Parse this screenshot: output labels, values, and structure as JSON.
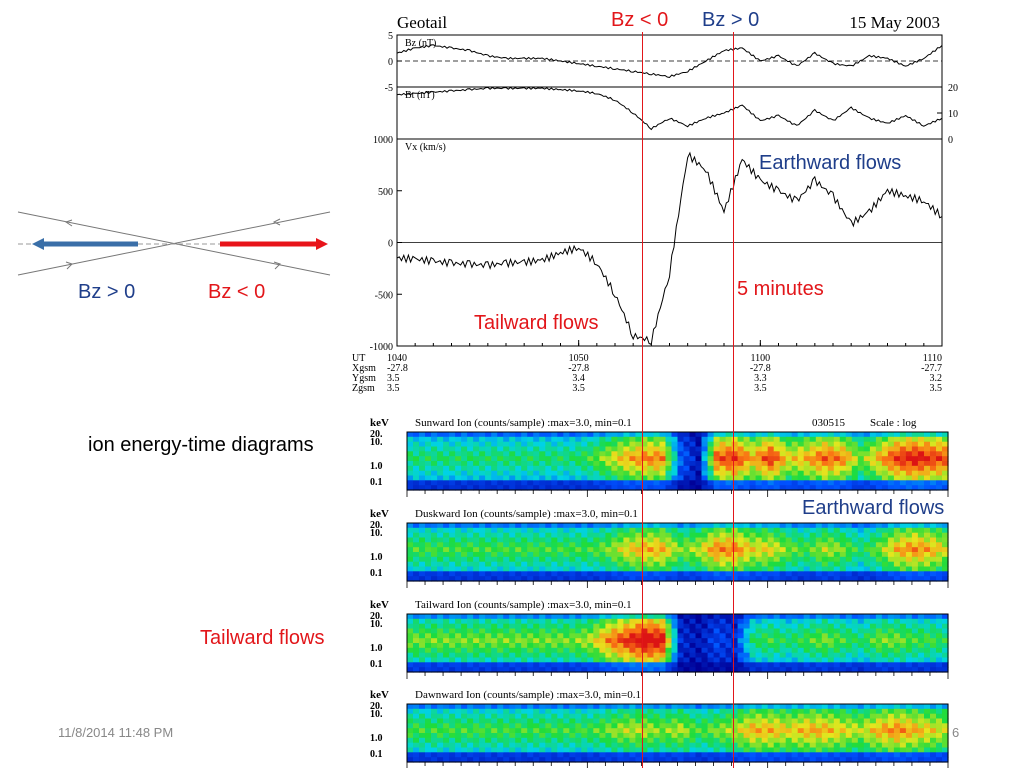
{
  "slide": {
    "footer_date": "11/8/2014 11:48 PM",
    "page_number": "6",
    "diagram_bz_pos": "Bz > 0",
    "diagram_bz_neg": "Bz < 0",
    "ion_label": "ion energy-time diagrams",
    "tailward_label_left": "Tailward flows",
    "colors": {
      "red": "#e2161a",
      "blue": "#1f3e8a",
      "arrow_blue": "#3a6fa8",
      "arrow_red": "#e8141a"
    }
  },
  "chart_data": [
    {
      "type": "line",
      "mission": "Geotail",
      "date": "15 May 2003",
      "x_ticks": [
        "1040",
        "1050",
        "1100",
        "1110"
      ],
      "ephemeris": {
        "row_labels": [
          "UT",
          "Xgsm",
          "Ygsm",
          "Zgsm"
        ],
        "columns": [
          {
            "ut": "1040",
            "x": "-27.8",
            "y": "3.5",
            "z": "3.5"
          },
          {
            "ut": "1050",
            "x": "-27.8",
            "y": "3.4",
            "z": "3.5"
          },
          {
            "ut": "1100",
            "x": "-27.8",
            "y": "3.3",
            "z": "3.5"
          },
          {
            "ut": "1110",
            "x": "-27.7",
            "y": "3.2",
            "z": "3.5"
          }
        ]
      },
      "xlim_minutes": [
        0,
        30
      ],
      "panels": [
        {
          "label": "Bz (nT)",
          "ylim": [
            -5,
            5
          ],
          "yticks": [
            "5",
            "0",
            "-5"
          ],
          "x_min": [
            0,
            1,
            2,
            3,
            4,
            5,
            6,
            7,
            8,
            9,
            10,
            11,
            12,
            13,
            14,
            15,
            16,
            17,
            18,
            19,
            20,
            21,
            22,
            23,
            24,
            25,
            26,
            27,
            28,
            29,
            30
          ],
          "values": [
            1.5,
            2.5,
            3,
            2.5,
            2,
            1,
            0.5,
            0.5,
            0.5,
            0,
            -0.5,
            -1,
            -1.5,
            -2,
            -2.5,
            -3,
            -2,
            0,
            2,
            2.5,
            0,
            1,
            -1,
            1.5,
            -0.5,
            -1,
            1,
            0.5,
            -1,
            0.5,
            3
          ]
        },
        {
          "label": "Bt (nT)",
          "ylim": [
            0,
            20
          ],
          "yticks_right": [
            "20",
            "10",
            "0"
          ],
          "x_min": [
            0,
            1,
            2,
            3,
            4,
            5,
            6,
            7,
            8,
            9,
            10,
            11,
            12,
            13,
            14,
            15,
            16,
            17,
            18,
            19,
            20,
            21,
            22,
            23,
            24,
            25,
            26,
            27,
            28,
            29,
            30
          ],
          "values": [
            17,
            17.5,
            18,
            18.5,
            19,
            19.5,
            19.5,
            19.5,
            19.5,
            19,
            18.5,
            17.5,
            15,
            10,
            4,
            8,
            5,
            8,
            10,
            13,
            7,
            9,
            5,
            11,
            7,
            12,
            8,
            6,
            9,
            5,
            8
          ]
        },
        {
          "label": "Vx (km/s)",
          "ylim": [
            -1000,
            1000
          ],
          "yticks": [
            "1000",
            "500",
            "0",
            "-500",
            "-1000"
          ],
          "x_min": [
            0,
            1,
            2,
            3,
            4,
            5,
            6,
            7,
            8,
            9,
            10,
            11,
            12,
            13,
            14,
            15,
            16,
            17,
            18,
            19,
            20,
            21,
            22,
            23,
            24,
            25,
            26,
            27,
            28,
            29,
            30
          ],
          "values": [
            -150,
            -160,
            -180,
            -200,
            -210,
            -220,
            -200,
            -190,
            -170,
            -100,
            -50,
            -200,
            -500,
            -900,
            -950,
            -300,
            850,
            700,
            300,
            800,
            600,
            500,
            400,
            600,
            450,
            180,
            300,
            500,
            450,
            400,
            250
          ]
        }
      ]
    },
    {
      "type": "heatmap",
      "title_right": "030515",
      "scale": "Scale : log",
      "y_unit": "keV",
      "y_ticks": [
        "20.",
        "10.",
        "1.0",
        "0.1"
      ],
      "x_min_range": [
        0,
        30
      ],
      "panels": [
        {
          "title": "Sunward Ion (counts/sample) :max=3.0, min=0.1",
          "flux": [
            0.45,
            0.45,
            0.45,
            0.45,
            0.45,
            0.45,
            0.45,
            0.45,
            0.45,
            0.45,
            0.5,
            0.6,
            0.7,
            0.75,
            0.75,
            0.2,
            0.05,
            0.8,
            0.85,
            0.7,
            0.85,
            0.65,
            0.7,
            0.8,
            0.75,
            0.55,
            0.7,
            0.85,
            0.9,
            0.85,
            0.8
          ]
        },
        {
          "title": "Duskward Ion (counts/sample) :max=3.0, min=0.1",
          "flux": [
            0.5,
            0.5,
            0.5,
            0.5,
            0.5,
            0.5,
            0.5,
            0.5,
            0.5,
            0.5,
            0.5,
            0.55,
            0.65,
            0.7,
            0.7,
            0.55,
            0.6,
            0.75,
            0.75,
            0.65,
            0.65,
            0.55,
            0.5,
            0.6,
            0.55,
            0.45,
            0.55,
            0.7,
            0.75,
            0.7,
            0.6
          ]
        },
        {
          "title": "Tailward Ion (counts/sample) :max=3.0, min=0.1",
          "flux": [
            0.55,
            0.55,
            0.55,
            0.55,
            0.55,
            0.55,
            0.55,
            0.55,
            0.55,
            0.55,
            0.6,
            0.75,
            0.85,
            0.95,
            0.9,
            0.1,
            0.05,
            0.15,
            0.1,
            0.45,
            0.5,
            0.45,
            0.5,
            0.55,
            0.5,
            0.45,
            0.55,
            0.55,
            0.5,
            0.5,
            0.45
          ]
        },
        {
          "title": "Dawnward Ion (counts/sample) :max=3.0, min=0.1",
          "flux": [
            0.5,
            0.5,
            0.5,
            0.5,
            0.5,
            0.5,
            0.5,
            0.5,
            0.5,
            0.5,
            0.5,
            0.55,
            0.6,
            0.6,
            0.55,
            0.6,
            0.5,
            0.55,
            0.6,
            0.7,
            0.7,
            0.65,
            0.7,
            0.7,
            0.65,
            0.6,
            0.7,
            0.75,
            0.7,
            0.65,
            0.6
          ]
        }
      ]
    }
  ],
  "annotations": {
    "bz_neg": "Bz < 0",
    "bz_pos": "Bz > 0",
    "earthward_flows_1": "Earthward flows",
    "five_minutes": "5 minutes",
    "tailward_flows_1": "Tailward flows",
    "earthward_flows_2": "Earthward flows",
    "marker_times_min": [
      13.5,
      18.5
    ]
  }
}
